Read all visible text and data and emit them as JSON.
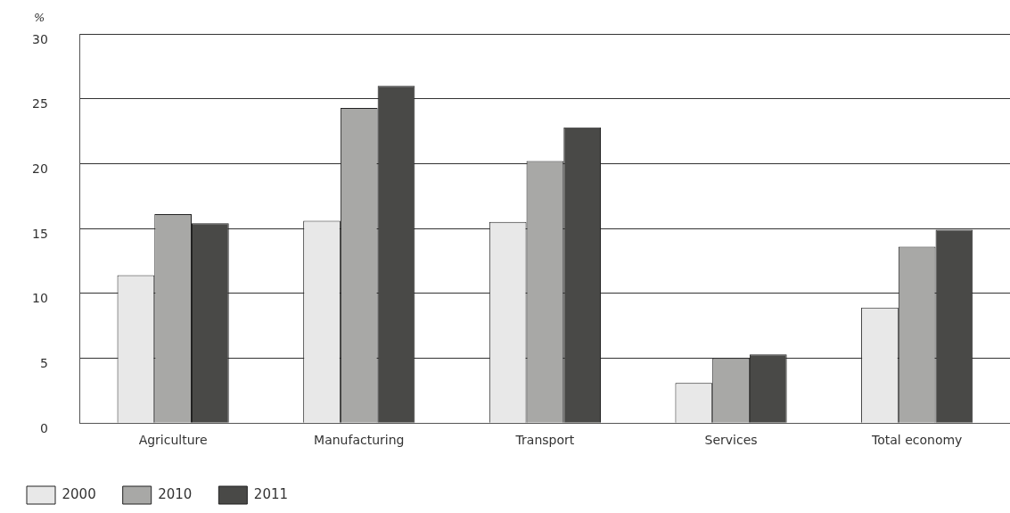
{
  "chart_data": {
    "type": "bar",
    "ylabel": "%",
    "categories": [
      "Agriculture",
      "Manufacturing",
      "Transport",
      "Services",
      "Total economy"
    ],
    "series": [
      {
        "name": "2000",
        "color": "#e8e8e8",
        "values": [
          11.4,
          15.6,
          15.5,
          3.1,
          8.9
        ]
      },
      {
        "name": "2010",
        "color": "#a8a8a6",
        "values": [
          16.1,
          24.3,
          20.2,
          5.0,
          13.6
        ]
      },
      {
        "name": "2011",
        "color": "#494947",
        "values": [
          15.4,
          26.0,
          22.8,
          5.3,
          14.9
        ]
      }
    ],
    "ylim": [
      0,
      30
    ],
    "yticks": [
      0,
      5,
      10,
      15,
      20,
      25,
      30
    ],
    "grid": "y",
    "legend": "bottom left"
  }
}
